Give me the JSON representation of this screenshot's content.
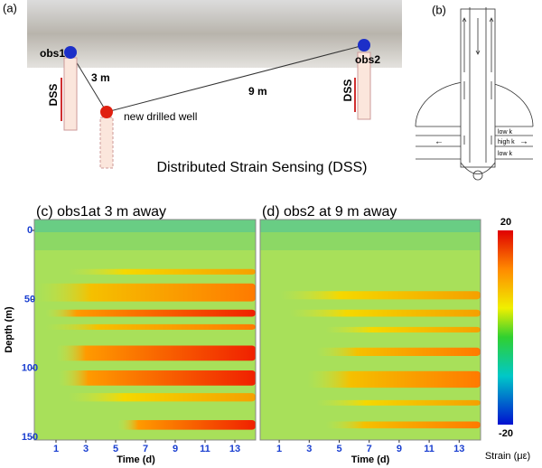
{
  "panel_a": {
    "label": "(a)",
    "obs1": "obs1",
    "obs2": "obs2",
    "dss_left": "DSS",
    "dss_right": "DSS",
    "distance1": "3 m",
    "distance2": "9 m",
    "new_well": "new drilled well",
    "caption": "Distributed Strain Sensing (DSS)"
  },
  "panel_b": {
    "label": "(b)",
    "layers": [
      "low k",
      "high k",
      "low k"
    ]
  },
  "panel_c": {
    "title": "(c) obs1at 3 m away"
  },
  "panel_d": {
    "title": "(d) obs2 at 9 m away"
  },
  "axes": {
    "y_label": "Depth (m)",
    "y_ticks": [
      "0",
      "50",
      "100",
      "150"
    ],
    "x_label": "Time (d)",
    "x_ticks": [
      "1",
      "3",
      "5",
      "7",
      "9",
      "11",
      "13"
    ]
  },
  "colorbar": {
    "max": "20",
    "min": "-20",
    "label": "Strain (με)"
  }
}
